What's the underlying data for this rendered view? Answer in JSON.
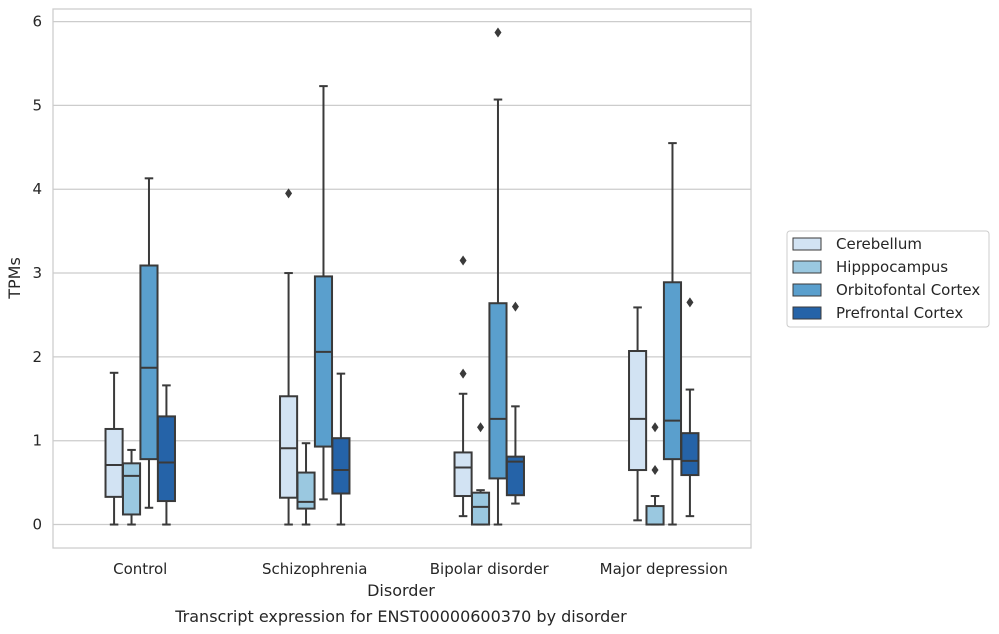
{
  "chart_data": {
    "type": "boxplot",
    "xlabel": "Disorder",
    "ylabel": "TPMs",
    "caption": "Transcript expression for ENST00000600370 by disorder",
    "categories": [
      "Control",
      "Schizophrenia",
      "Bipolar disorder",
      "Major depression"
    ],
    "ylim": [
      -0.28,
      6.15
    ],
    "yticks": [
      0,
      1,
      2,
      3,
      4,
      5,
      6
    ],
    "grid": "horizontal",
    "legend_position": "outside-right",
    "series": [
      {
        "name": "Cerebellum",
        "color": "#d2e3f3",
        "boxes": [
          {
            "whislo": 0.0,
            "q1": 0.33,
            "med": 0.71,
            "q3": 1.14,
            "whishi": 1.81,
            "fliers": []
          },
          {
            "whislo": 0.0,
            "q1": 0.32,
            "med": 0.91,
            "q3": 1.53,
            "whishi": 3.0,
            "fliers": [
              3.95
            ]
          },
          {
            "whislo": 0.1,
            "q1": 0.34,
            "med": 0.68,
            "q3": 0.86,
            "whishi": 1.56,
            "fliers": [
              1.8,
              3.15
            ]
          },
          {
            "whislo": 0.05,
            "q1": 0.65,
            "med": 1.26,
            "q3": 2.07,
            "whishi": 2.59,
            "fliers": []
          }
        ]
      },
      {
        "name": "Hipppocampus",
        "color": "#9ac8e0",
        "boxes": [
          {
            "whislo": 0.0,
            "q1": 0.12,
            "med": 0.58,
            "q3": 0.73,
            "whishi": 0.89,
            "fliers": []
          },
          {
            "whislo": 0.0,
            "q1": 0.19,
            "med": 0.27,
            "q3": 0.62,
            "whishi": 0.97,
            "fliers": []
          },
          {
            "whislo": 0.0,
            "q1": 0.0,
            "med": 0.21,
            "q3": 0.38,
            "whishi": 0.41,
            "fliers": [
              1.16
            ]
          },
          {
            "whislo": 0.0,
            "q1": 0.0,
            "med": 0.0,
            "q3": 0.22,
            "whishi": 0.34,
            "fliers": [
              0.65,
              1.16
            ]
          }
        ]
      },
      {
        "name": "Orbitofontal Cortex",
        "color": "#5a9fcd",
        "boxes": [
          {
            "whislo": 0.2,
            "q1": 0.78,
            "med": 1.87,
            "q3": 3.09,
            "whishi": 4.13,
            "fliers": []
          },
          {
            "whislo": 0.3,
            "q1": 0.93,
            "med": 2.06,
            "q3": 2.96,
            "whishi": 5.23,
            "fliers": []
          },
          {
            "whislo": 0.0,
            "q1": 0.55,
            "med": 1.26,
            "q3": 2.64,
            "whishi": 5.07,
            "fliers": [
              5.87
            ]
          },
          {
            "whislo": 0.0,
            "q1": 0.78,
            "med": 1.24,
            "q3": 2.89,
            "whishi": 4.55,
            "fliers": []
          }
        ]
      },
      {
        "name": "Prefrontal Cortex",
        "color": "#2563a8",
        "boxes": [
          {
            "whislo": 0.0,
            "q1": 0.28,
            "med": 0.74,
            "q3": 1.29,
            "whishi": 1.66,
            "fliers": []
          },
          {
            "whislo": 0.0,
            "q1": 0.37,
            "med": 0.65,
            "q3": 1.03,
            "whishi": 1.8,
            "fliers": []
          },
          {
            "whislo": 0.25,
            "q1": 0.35,
            "med": 0.75,
            "q3": 0.81,
            "whishi": 1.41,
            "fliers": [
              2.6
            ]
          },
          {
            "whislo": 0.1,
            "q1": 0.59,
            "med": 0.76,
            "q3": 1.09,
            "whishi": 1.61,
            "fliers": [
              2.65
            ]
          }
        ]
      }
    ]
  }
}
